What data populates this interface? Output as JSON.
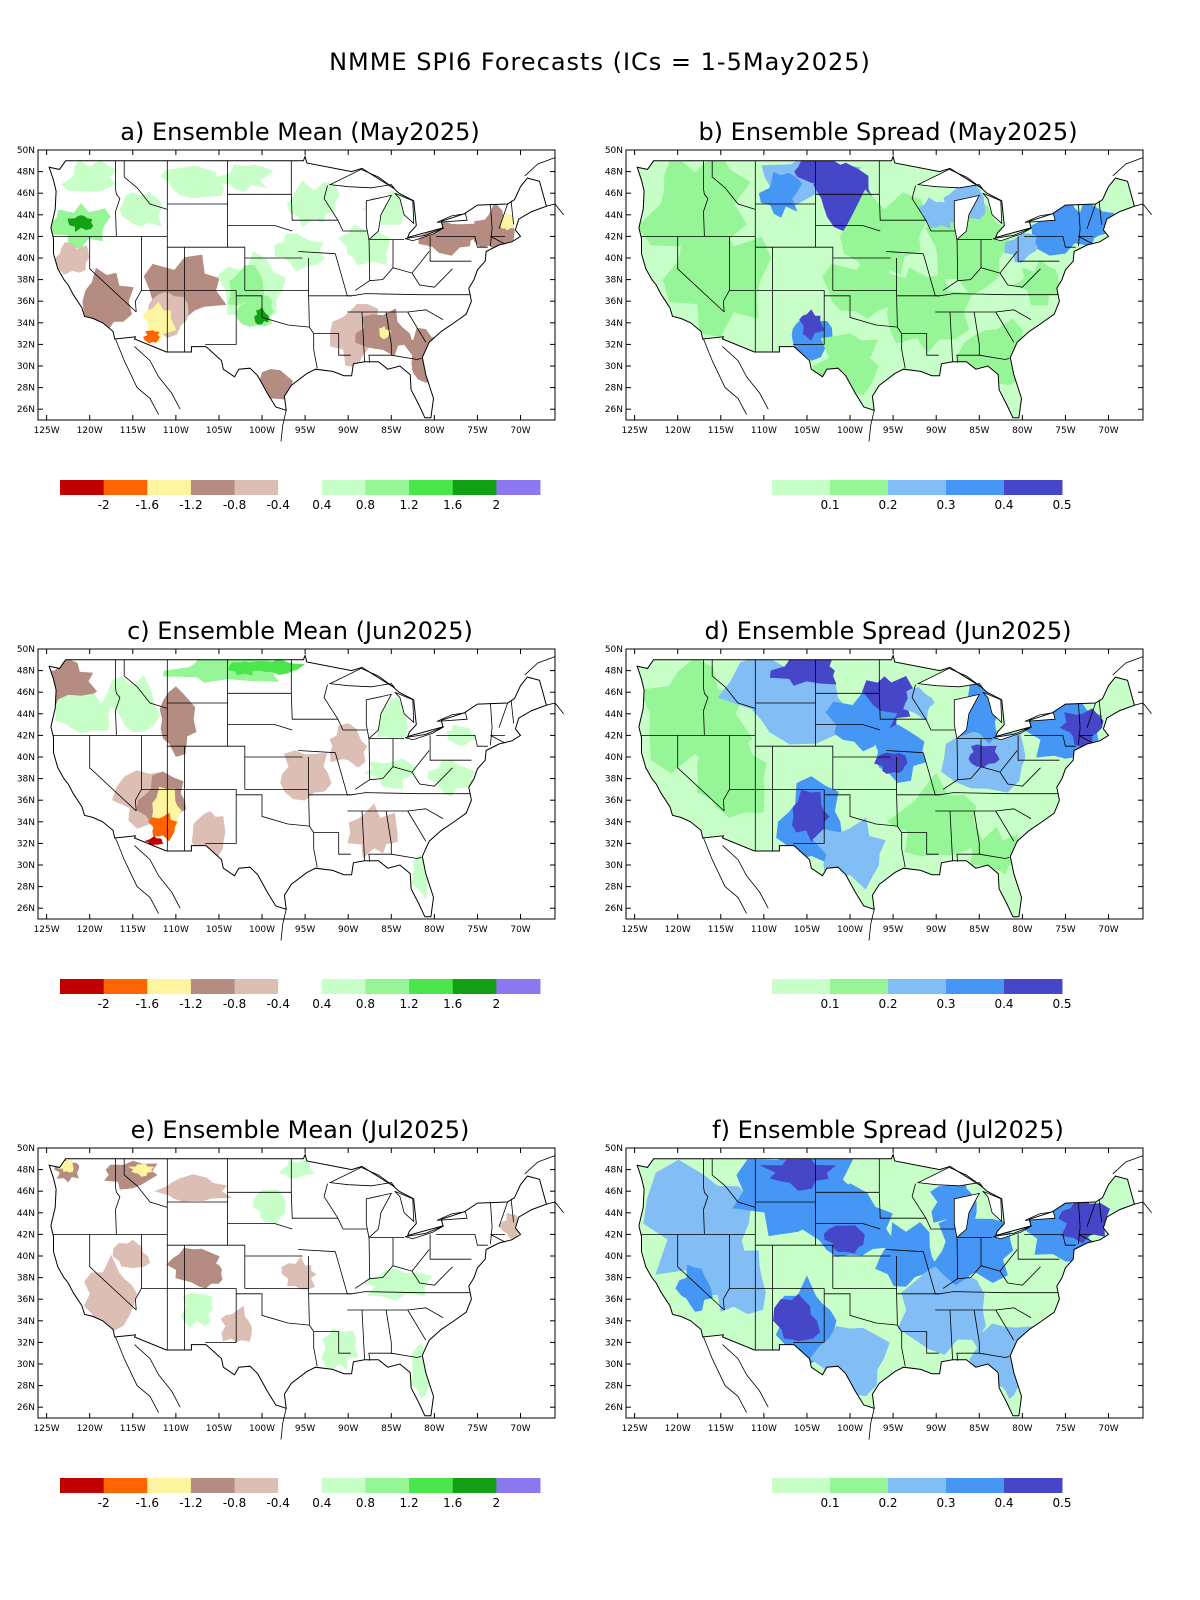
{
  "main_title": "NMME SPI6 Forecasts (ICs = 1-5May2025)",
  "lon_labels": [
    "125W",
    "120W",
    "115W",
    "110W",
    "105W",
    "100W",
    "95W",
    "90W",
    "85W",
    "80W",
    "75W",
    "70W"
  ],
  "lat_labels": [
    "50N",
    "48N",
    "46N",
    "44N",
    "42N",
    "40N",
    "38N",
    "36N",
    "34N",
    "32N",
    "30N",
    "28N",
    "26N"
  ],
  "mean_colorbar": {
    "colors": [
      "#c00000",
      "#ff6400",
      "#fff5a0",
      "#b48c82",
      "#dcbeb4",
      "#ffffff",
      "#c8ffc8",
      "#96f596",
      "#4be64b",
      "#14a014",
      "#8c78f0"
    ],
    "labels": [
      "-2",
      "-1.6",
      "-1.2",
      "-0.8",
      "-0.4",
      "0.4",
      "0.8",
      "1.2",
      "1.6",
      "2"
    ]
  },
  "spread_colorbar": {
    "colors": [
      "#c8ffc8",
      "#96f596",
      "#82bef5",
      "#4696f5",
      "#4646c8"
    ],
    "labels": [
      "0.1",
      "0.2",
      "0.3",
      "0.4",
      "0.5"
    ]
  },
  "panels": [
    {
      "id": "a",
      "title": "a) Ensemble Mean (May2025)",
      "kind": "mean"
    },
    {
      "id": "b",
      "title": "b) Ensemble Spread (May2025)",
      "kind": "spread"
    },
    {
      "id": "c",
      "title": "c) Ensemble Mean (Jun2025)",
      "kind": "mean"
    },
    {
      "id": "d",
      "title": "d) Ensemble Spread (Jun2025)",
      "kind": "spread"
    },
    {
      "id": "e",
      "title": "e) Ensemble Mean (Jul2025)",
      "kind": "mean"
    },
    {
      "id": "f",
      "title": "f) Ensemble Spread (Jul2025)",
      "kind": "spread"
    }
  ]
}
